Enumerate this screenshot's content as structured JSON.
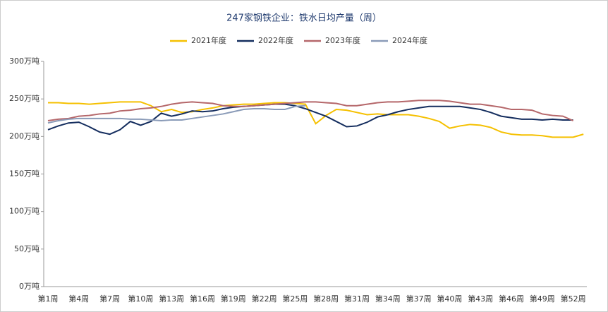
{
  "chart_data": {
    "type": "line",
    "title": "247家钢铁企业：铁水日均产量（周）",
    "categories": [
      "第1周",
      null,
      null,
      "第4周",
      null,
      null,
      "第7周",
      null,
      null,
      "第10周",
      null,
      null,
      "第13周",
      null,
      null,
      "第16周",
      null,
      null,
      "第19周",
      null,
      null,
      "第22周",
      null,
      null,
      "第25周",
      null,
      null,
      "第28周",
      null,
      null,
      "第31周",
      null,
      null,
      "第34周",
      null,
      null,
      "第37周",
      null,
      null,
      "第40周",
      null,
      null,
      "第43周",
      null,
      null,
      "第46周",
      null,
      null,
      "第49周",
      null,
      null,
      "第52周",
      null
    ],
    "series": [
      {
        "name": "2021年度",
        "color": "#f5c000",
        "values": [
          245,
          245,
          244,
          244,
          243,
          244,
          245,
          246,
          246,
          246,
          241,
          233,
          236,
          232,
          233,
          236,
          238,
          241,
          242,
          243,
          243,
          244,
          245,
          245,
          244,
          243,
          217,
          228,
          236,
          235,
          232,
          229,
          230,
          229,
          229,
          229,
          227,
          224,
          220,
          211,
          214,
          216,
          215,
          212,
          206,
          203,
          202,
          202,
          201,
          199,
          199,
          199,
          203
        ]
      },
      {
        "name": "2022年度",
        "color": "#142d5e",
        "values": [
          209,
          214,
          218,
          219,
          213,
          206,
          203,
          209,
          220,
          215,
          220,
          231,
          227,
          230,
          234,
          233,
          234,
          237,
          239,
          240,
          241,
          242,
          243,
          243,
          241,
          237,
          232,
          227,
          220,
          213,
          214,
          219,
          226,
          229,
          233,
          236,
          238,
          240,
          240,
          240,
          240,
          238,
          236,
          232,
          227,
          225,
          223,
          223,
          222,
          223,
          222,
          222,
          null
        ]
      },
      {
        "name": "2023年度",
        "color": "#b5676a",
        "values": [
          221,
          223,
          224,
          227,
          228,
          230,
          231,
          234,
          235,
          237,
          238,
          240,
          243,
          245,
          246,
          245,
          244,
          241,
          240,
          240,
          241,
          242,
          243,
          244,
          245,
          246,
          246,
          245,
          244,
          241,
          241,
          243,
          245,
          246,
          246,
          247,
          248,
          248,
          248,
          247,
          245,
          243,
          243,
          241,
          239,
          236,
          236,
          235,
          230,
          228,
          227,
          221,
          null
        ]
      },
      {
        "name": "2024年度",
        "color": "#8a9bb8",
        "values": [
          218,
          221,
          223,
          224,
          224,
          224,
          224,
          224,
          223,
          223,
          222,
          221,
          222,
          222,
          224,
          226,
          228,
          230,
          233,
          236,
          237,
          237,
          236,
          236,
          240,
          241,
          null,
          null,
          null,
          null,
          null,
          null,
          null,
          null,
          null,
          null,
          null,
          null,
          null,
          null,
          null,
          null,
          null,
          null,
          null,
          null,
          null,
          null,
          null,
          null,
          null,
          null,
          null
        ]
      }
    ],
    "ylim": [
      0,
      300
    ],
    "yticks": [
      {
        "value": 0,
        "label": "0万吨"
      },
      {
        "value": 50,
        "label": "50万吨"
      },
      {
        "value": 100,
        "label": "100万吨"
      },
      {
        "value": 150,
        "label": "150万吨"
      },
      {
        "value": 200,
        "label": "200万吨"
      },
      {
        "value": 250,
        "label": "250万吨"
      },
      {
        "value": 300,
        "label": "300万吨"
      }
    ],
    "legend": "top"
  }
}
